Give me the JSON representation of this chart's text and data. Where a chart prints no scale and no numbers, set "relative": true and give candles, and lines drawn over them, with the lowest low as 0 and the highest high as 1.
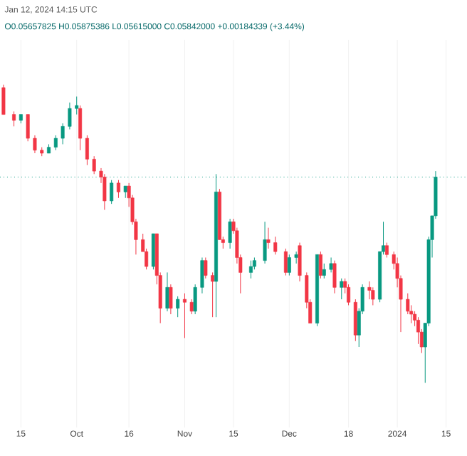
{
  "chart_data": {
    "type": "candlestick",
    "relative": true,
    "annotations": [
      "Jan 12, 2024 14:15 UTC",
      "O0.05657825 H0.05875386 L0.05615000 C0.05842000 +0.00184339 (+3.44%)"
    ],
    "x": [
      "2023-09-10",
      "2023-09-13",
      "2023-09-15",
      "2023-09-17",
      "2023-09-19",
      "2023-09-21",
      "2023-09-23",
      "2023-09-25",
      "2023-09-27",
      "2023-09-29",
      "2023-10-01",
      "2023-10-02",
      "2023-10-04",
      "2023-10-06",
      "2023-10-08",
      "2023-10-09",
      "2023-10-11",
      "2023-10-13",
      "2023-10-15",
      "2023-10-16",
      "2023-10-17",
      "2023-10-18",
      "2023-10-20",
      "2023-10-21",
      "2023-10-23",
      "2023-10-24",
      "2023-10-25",
      "2023-10-27",
      "2023-10-28",
      "2023-10-30",
      "2023-11-01",
      "2023-11-03",
      "2023-11-04",
      "2023-11-06",
      "2023-11-07",
      "2023-11-09",
      "2023-11-10",
      "2023-11-11",
      "2023-11-12",
      "2023-11-14",
      "2023-11-15",
      "2023-11-16",
      "2023-11-17",
      "2023-11-20",
      "2023-11-21",
      "2023-11-24",
      "2023-11-25",
      "2023-11-27",
      "2023-11-30",
      "2023-12-01",
      "2023-12-03",
      "2023-12-04",
      "2023-12-06",
      "2023-12-07",
      "2023-12-09",
      "2023-12-10",
      "2023-12-11",
      "2023-12-13",
      "2023-12-14",
      "2023-12-16",
      "2023-12-17",
      "2023-12-18",
      "2023-12-20",
      "2023-12-21",
      "2023-12-22",
      "2023-12-24",
      "2023-12-25",
      "2023-12-27",
      "2023-12-28",
      "2023-12-29",
      "2023-12-31",
      "2024-01-01",
      "2024-01-02",
      "2024-01-04",
      "2024-01-05",
      "2024-01-06",
      "2024-01-07",
      "2024-01-08",
      "2024-01-09",
      "2024-01-10",
      "2024-01-11",
      "2024-01-12"
    ],
    "ohlc": [
      [
        0.99,
        1.0,
        0.9,
        0.9
      ],
      [
        0.9,
        0.91,
        0.86,
        0.88
      ],
      [
        0.88,
        0.9,
        0.87,
        0.9
      ],
      [
        0.9,
        0.9,
        0.81,
        0.82
      ],
      [
        0.82,
        0.83,
        0.77,
        0.78
      ],
      [
        0.78,
        0.79,
        0.76,
        0.77
      ],
      [
        0.77,
        0.8,
        0.77,
        0.79
      ],
      [
        0.79,
        0.83,
        0.78,
        0.82
      ],
      [
        0.82,
        0.87,
        0.8,
        0.86
      ],
      [
        0.86,
        0.94,
        0.85,
        0.92
      ],
      [
        0.92,
        0.96,
        0.9,
        0.93
      ],
      [
        0.92,
        0.93,
        0.78,
        0.82
      ],
      [
        0.82,
        0.83,
        0.73,
        0.75
      ],
      [
        0.75,
        0.76,
        0.7,
        0.71
      ],
      [
        0.71,
        0.72,
        0.67,
        0.69
      ],
      [
        0.69,
        0.7,
        0.58,
        0.61
      ],
      [
        0.61,
        0.68,
        0.6,
        0.67
      ],
      [
        0.67,
        0.68,
        0.62,
        0.64
      ],
      [
        0.64,
        0.66,
        0.62,
        0.66
      ],
      [
        0.66,
        0.67,
        0.59,
        0.62
      ],
      [
        0.62,
        0.63,
        0.53,
        0.54
      ],
      [
        0.54,
        0.55,
        0.43,
        0.48
      ],
      [
        0.48,
        0.5,
        0.44,
        0.44
      ],
      [
        0.44,
        0.45,
        0.38,
        0.39
      ],
      [
        0.39,
        0.5,
        0.38,
        0.5
      ],
      [
        0.5,
        0.5,
        0.33,
        0.36
      ],
      [
        0.36,
        0.37,
        0.2,
        0.25
      ],
      [
        0.25,
        0.37,
        0.24,
        0.32
      ],
      [
        0.32,
        0.33,
        0.23,
        0.25
      ],
      [
        0.25,
        0.29,
        0.22,
        0.28
      ],
      [
        0.28,
        0.3,
        0.15,
        0.27
      ],
      [
        0.27,
        0.28,
        0.23,
        0.24
      ],
      [
        0.24,
        0.33,
        0.23,
        0.32
      ],
      [
        0.32,
        0.42,
        0.3,
        0.41
      ],
      [
        0.41,
        0.42,
        0.35,
        0.36
      ],
      [
        0.36,
        0.37,
        0.22,
        0.34
      ],
      [
        0.34,
        0.7,
        0.22,
        0.64
      ],
      [
        0.64,
        0.65,
        0.48,
        0.48
      ],
      [
        0.48,
        0.49,
        0.45,
        0.47
      ],
      [
        0.47,
        0.55,
        0.45,
        0.54
      ],
      [
        0.54,
        0.55,
        0.5,
        0.51
      ],
      [
        0.51,
        0.52,
        0.4,
        0.42
      ],
      [
        0.42,
        0.43,
        0.3,
        0.37
      ],
      [
        0.37,
        0.41,
        0.35,
        0.39
      ],
      [
        0.39,
        0.42,
        0.38,
        0.41
      ],
      [
        0.41,
        0.54,
        0.4,
        0.48
      ],
      [
        0.48,
        0.52,
        0.45,
        0.47
      ],
      [
        0.47,
        0.49,
        0.43,
        0.44
      ],
      [
        0.44,
        0.45,
        0.36,
        0.37
      ],
      [
        0.37,
        0.43,
        0.36,
        0.42
      ],
      [
        0.42,
        0.44,
        0.4,
        0.43
      ],
      [
        0.46,
        0.47,
        0.34,
        0.36
      ],
      [
        0.36,
        0.37,
        0.25,
        0.27
      ],
      [
        0.27,
        0.28,
        0.2,
        0.2
      ],
      [
        0.2,
        0.43,
        0.19,
        0.43
      ],
      [
        0.43,
        0.44,
        0.35,
        0.36
      ],
      [
        0.36,
        0.4,
        0.35,
        0.38
      ],
      [
        0.38,
        0.42,
        0.37,
        0.4
      ],
      [
        0.4,
        0.41,
        0.3,
        0.32
      ],
      [
        0.32,
        0.35,
        0.28,
        0.34
      ],
      [
        0.34,
        0.35,
        0.3,
        0.32
      ],
      [
        0.32,
        0.33,
        0.26,
        0.27
      ],
      [
        0.27,
        0.28,
        0.14,
        0.16
      ],
      [
        0.16,
        0.25,
        0.12,
        0.24
      ],
      [
        0.24,
        0.33,
        0.23,
        0.32
      ],
      [
        0.32,
        0.34,
        0.28,
        0.31
      ],
      [
        0.31,
        0.32,
        0.26,
        0.28
      ],
      [
        0.28,
        0.44,
        0.27,
        0.44
      ],
      [
        0.44,
        0.54,
        0.43,
        0.46
      ],
      [
        0.46,
        0.47,
        0.42,
        0.43
      ],
      [
        0.43,
        0.44,
        0.38,
        0.4
      ],
      [
        0.4,
        0.42,
        0.32,
        0.35
      ],
      [
        0.35,
        0.36,
        0.17,
        0.28
      ],
      [
        0.28,
        0.3,
        0.23,
        0.24
      ],
      [
        0.24,
        0.26,
        0.2,
        0.23
      ],
      [
        0.23,
        0.24,
        0.19,
        0.21
      ],
      [
        0.21,
        0.22,
        0.13,
        0.17
      ],
      [
        0.17,
        0.18,
        0.1,
        0.12
      ],
      [
        0.12,
        0.2,
        0.0,
        0.2
      ],
      [
        0.2,
        0.49,
        0.19,
        0.48
      ],
      [
        0.48,
        0.56,
        0.42,
        0.56
      ],
      [
        0.56,
        0.71,
        0.55,
        0.69
      ]
    ],
    "colors": [
      "#f23645",
      "#f23645",
      "#089981",
      "#f23645",
      "#f23645",
      "#f23645",
      "#089981",
      "#089981",
      "#089981",
      "#089981",
      "#089981",
      "#f23645",
      "#f23645",
      "#f23645",
      "#f23645",
      "#f23645",
      "#089981",
      "#f23645",
      "#089981",
      "#f23645",
      "#f23645",
      "#f23645",
      "#f23645",
      "#f23645",
      "#089981",
      "#f23645",
      "#f23645",
      "#089981",
      "#f23645",
      "#089981",
      "#f23645",
      "#f23645",
      "#089981",
      "#089981",
      "#f23645",
      "#f23645",
      "#089981",
      "#f23645",
      "#f23645",
      "#089981",
      "#f23645",
      "#f23645",
      "#f23645",
      "#089981",
      "#089981",
      "#089981",
      "#f23645",
      "#f23645",
      "#f23645",
      "#089981",
      "#089981",
      "#f23645",
      "#f23645",
      "#f23645",
      "#089981",
      "#f23645",
      "#089981",
      "#089981",
      "#f23645",
      "#089981",
      "#f23645",
      "#f23645",
      "#f23645",
      "#089981",
      "#089981",
      "#f23645",
      "#f23645",
      "#089981",
      "#089981",
      "#f23645",
      "#f23645",
      "#f23645",
      "#f23645",
      "#f23645",
      "#f23645",
      "#f23645",
      "#f23645",
      "#f23645",
      "#089981",
      "#089981",
      "#089981",
      "#089981"
    ],
    "xlim": [
      "2023-09-09",
      "2024-01-21"
    ],
    "xticks": [
      {
        "value": "2023-09-15",
        "label": "15"
      },
      {
        "value": "2023-10-01",
        "label": "Oct"
      },
      {
        "value": "2023-10-16",
        "label": "16"
      },
      {
        "value": "2023-11-01",
        "label": "Nov"
      },
      {
        "value": "2023-11-15",
        "label": "15"
      },
      {
        "value": "2023-12-01",
        "label": "Dec"
      },
      {
        "value": "2023-12-18",
        "label": "18"
      },
      {
        "value": "2024-01-01",
        "label": "2024"
      },
      {
        "value": "2024-01-15",
        "label": "15"
      }
    ],
    "grid": "x",
    "ref_lines": [
      {
        "axis": "y",
        "value": 0.69,
        "color": "#089981",
        "line_style": "dotted"
      }
    ]
  }
}
